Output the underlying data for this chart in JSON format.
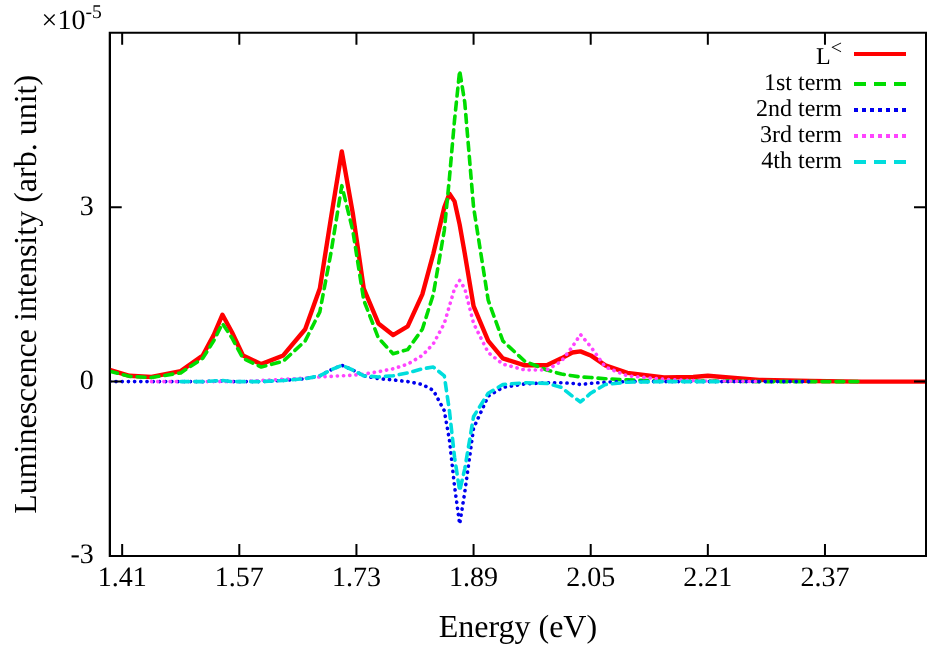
{
  "chart_data": {
    "type": "line",
    "xlabel": "Energy (eV)",
    "ylabel": "Luminescence intensity (arb. unit)",
    "annotations": [
      "×10$^{-5}$"
    ],
    "x": [
      1.393,
      1.42,
      1.45,
      1.49,
      1.52,
      1.535,
      1.547,
      1.56,
      1.575,
      1.6,
      1.63,
      1.66,
      1.68,
      1.695,
      1.71,
      1.725,
      1.74,
      1.76,
      1.78,
      1.8,
      1.82,
      1.835,
      1.85,
      1.857,
      1.864,
      1.871,
      1.878,
      1.89,
      1.91,
      1.93,
      1.96,
      1.99,
      2.01,
      2.025,
      2.036,
      2.05,
      2.07,
      2.1,
      2.15,
      2.19,
      2.21,
      2.23,
      2.28,
      2.35,
      2.42,
      2.508
    ],
    "series": [
      {
        "name": "L$^{<}$",
        "color": "#ff0000",
        "line_style": "solid",
        "values": [
          0.2,
          0.1,
          0.08,
          0.18,
          0.45,
          0.8,
          1.15,
          0.85,
          0.45,
          0.3,
          0.45,
          0.9,
          1.6,
          2.8,
          3.96,
          2.9,
          1.6,
          1.0,
          0.8,
          0.95,
          1.5,
          2.2,
          3.0,
          3.23,
          3.1,
          2.7,
          2.2,
          1.3,
          0.7,
          0.4,
          0.28,
          0.28,
          0.4,
          0.5,
          0.52,
          0.45,
          0.28,
          0.15,
          0.07,
          0.08,
          0.1,
          0.08,
          0.03,
          0.01,
          0,
          0
        ]
      },
      {
        "name": "1st term",
        "color": "#00dd00",
        "line_style": "dashed",
        "values": [
          0.18,
          0.09,
          0.07,
          0.15,
          0.4,
          0.7,
          1.0,
          0.75,
          0.4,
          0.25,
          0.35,
          0.7,
          1.2,
          2.2,
          3.37,
          2.6,
          1.4,
          0.75,
          0.48,
          0.55,
          0.9,
          1.5,
          2.6,
          3.5,
          4.5,
          5.35,
          4.8,
          3.0,
          1.4,
          0.7,
          0.35,
          0.2,
          0.13,
          0.1,
          0.08,
          0.07,
          0.05,
          0.03,
          0.01,
          0.01,
          0.01,
          0.01,
          0,
          0,
          0,
          null
        ]
      },
      {
        "name": "2nd term",
        "color": "#0000ee",
        "line_style": "dotted",
        "values": [
          0,
          0,
          0,
          0,
          0,
          0.01,
          0.01,
          0,
          0,
          0,
          0.02,
          0.05,
          0.1,
          0.2,
          0.28,
          0.2,
          0.1,
          0.05,
          0.03,
          0,
          -0.05,
          -0.15,
          -0.5,
          -1.0,
          -1.8,
          -2.45,
          -1.9,
          -0.8,
          -0.25,
          -0.1,
          -0.04,
          -0.02,
          -0.02,
          -0.03,
          -0.05,
          -0.03,
          -0.01,
          0,
          0,
          0,
          0,
          0,
          0,
          0,
          null,
          null
        ]
      },
      {
        "name": "3rd term",
        "color": "#ff44ff",
        "line_style": "dotted",
        "values": [
          null,
          null,
          0,
          0,
          0,
          0,
          0,
          0,
          0,
          0.02,
          0.04,
          0.06,
          0.08,
          0.09,
          0.1,
          0.11,
          0.13,
          0.17,
          0.22,
          0.3,
          0.45,
          0.65,
          1.0,
          1.3,
          1.6,
          1.74,
          1.6,
          1.0,
          0.5,
          0.3,
          0.2,
          0.2,
          0.35,
          0.6,
          0.81,
          0.6,
          0.25,
          0.1,
          0.04,
          0.02,
          0.01,
          0.01,
          0,
          null,
          null,
          null
        ]
      },
      {
        "name": "4th term",
        "color": "#00dddd",
        "line_style": "dashed",
        "values": [
          null,
          null,
          null,
          0,
          0,
          0.01,
          0.02,
          0,
          0,
          0,
          0.02,
          0.05,
          0.1,
          0.2,
          0.28,
          0.2,
          0.1,
          0.08,
          0.1,
          0.15,
          0.22,
          0.25,
          0.1,
          -0.5,
          -1.3,
          -1.88,
          -1.5,
          -0.6,
          -0.2,
          -0.05,
          -0.02,
          -0.03,
          -0.1,
          -0.25,
          -0.35,
          -0.2,
          -0.05,
          -0.01,
          0,
          0,
          0,
          0,
          null,
          null,
          null,
          null
        ]
      }
    ],
    "xlim": [
      1.393,
      2.508
    ],
    "xticks": [
      1.41,
      1.57,
      1.73,
      1.89,
      2.05,
      2.21,
      2.37
    ],
    "ylim": [
      -3,
      6
    ],
    "yticks": [
      -3,
      0,
      3
    ],
    "grid": false,
    "legend": "top right"
  }
}
